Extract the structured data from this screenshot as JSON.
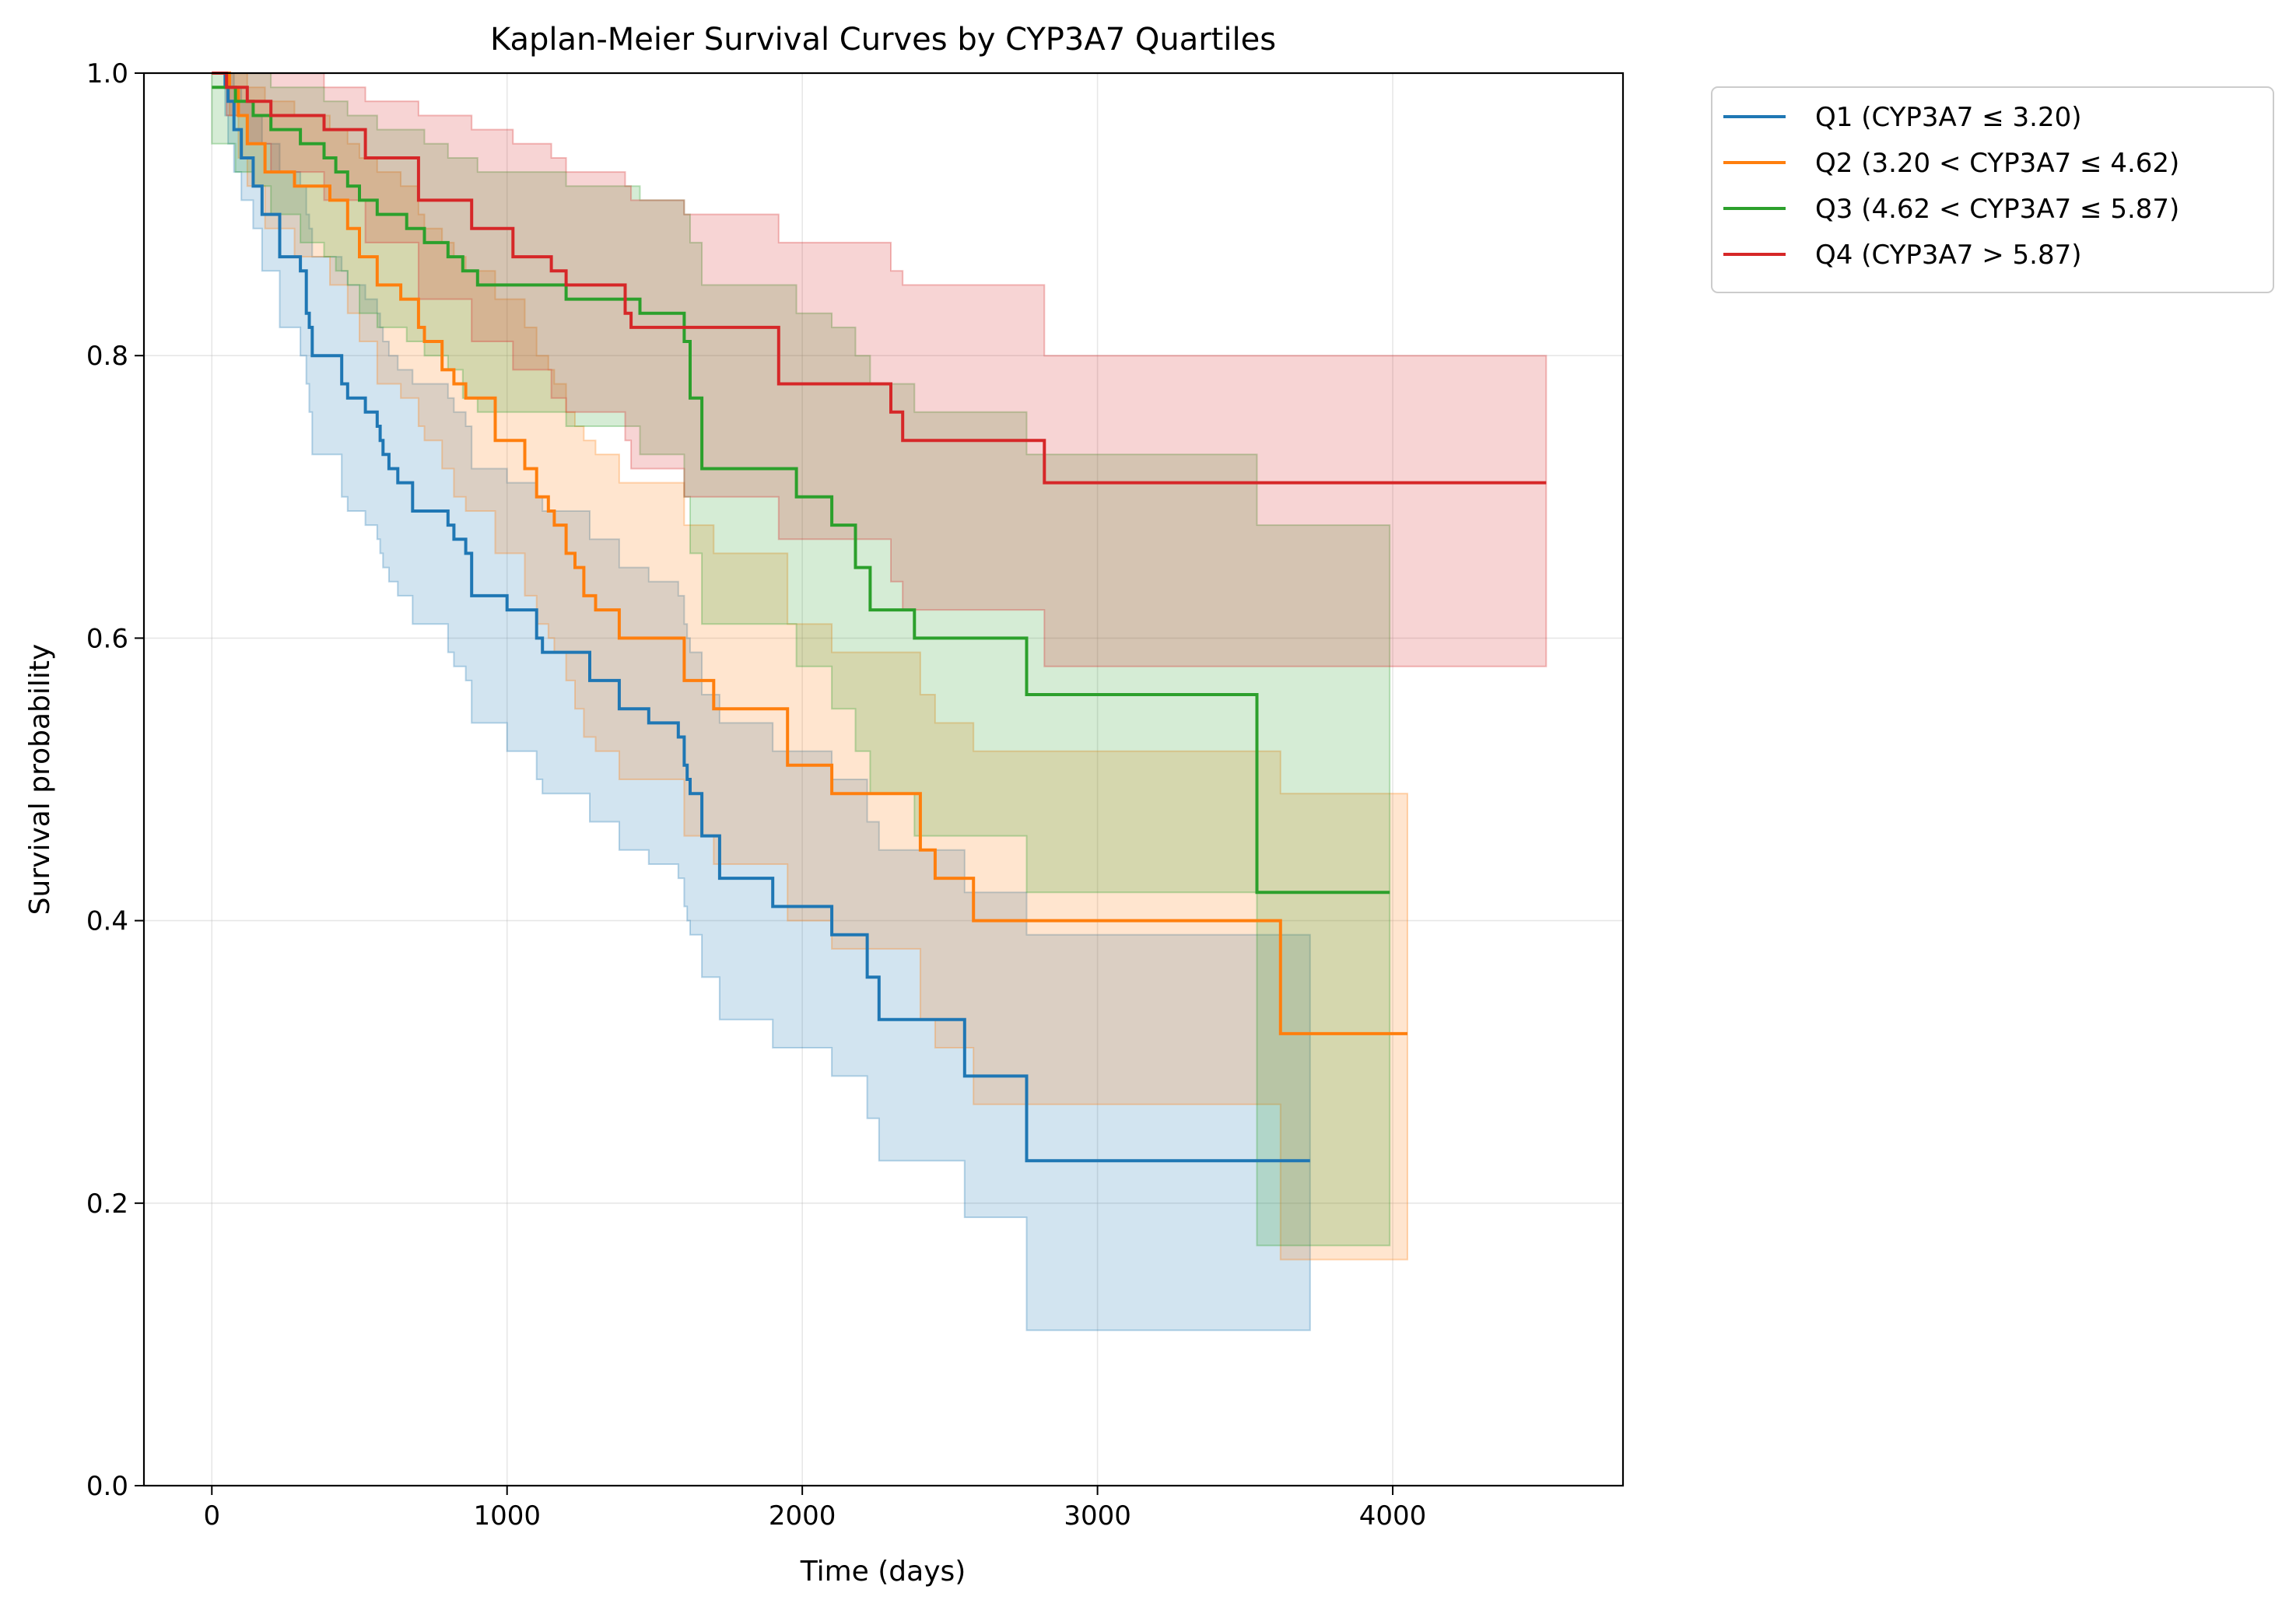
{
  "chart_data": {
    "type": "line",
    "title": "Kaplan-Meier Survival Curves by CYP3A7 Quartiles",
    "xlabel": "Time (days)",
    "ylabel": "Survival probability",
    "xlim": [
      -230,
      4780
    ],
    "ylim": [
      0.0,
      1.0
    ],
    "xticks": [
      0,
      1000,
      2000,
      3000,
      4000
    ],
    "yticks": [
      0.0,
      0.2,
      0.4,
      0.6,
      0.8,
      1.0
    ],
    "xtick_labels": [
      "0",
      "1000",
      "2000",
      "3000",
      "4000"
    ],
    "ytick_labels": [
      "0.0",
      "0.2",
      "0.4",
      "0.6",
      "0.8",
      "1.0"
    ],
    "grid": true,
    "legend_position": "outside-top-right",
    "series": [
      {
        "name": "Q1 (CYP3A7 ≤ 3.20)",
        "color": "#1f77b4",
        "x": [
          0,
          45,
          55,
          75,
          100,
          140,
          170,
          230,
          300,
          320,
          330,
          340,
          440,
          460,
          520,
          560,
          570,
          580,
          600,
          630,
          680,
          800,
          820,
          860,
          880,
          900,
          1000,
          1100,
          1120,
          1180,
          1280,
          1380,
          1480,
          1580,
          1600,
          1610,
          1620,
          1660,
          1720,
          1900,
          2100,
          2220,
          2260,
          2550,
          2760,
          3720
        ],
        "y": [
          1.0,
          0.99,
          0.98,
          0.96,
          0.94,
          0.92,
          0.9,
          0.87,
          0.86,
          0.83,
          0.82,
          0.8,
          0.78,
          0.77,
          0.76,
          0.75,
          0.74,
          0.73,
          0.72,
          0.71,
          0.69,
          0.68,
          0.67,
          0.66,
          0.63,
          0.63,
          0.62,
          0.6,
          0.59,
          0.59,
          0.57,
          0.55,
          0.54,
          0.53,
          0.51,
          0.5,
          0.49,
          0.46,
          0.43,
          0.41,
          0.39,
          0.36,
          0.33,
          0.29,
          0.23,
          0.23
        ],
        "ci_lower": [
          1.0,
          0.97,
          0.95,
          0.93,
          0.91,
          0.89,
          0.86,
          0.82,
          0.8,
          0.78,
          0.76,
          0.73,
          0.7,
          0.69,
          0.68,
          0.67,
          0.66,
          0.65,
          0.64,
          0.63,
          0.61,
          0.59,
          0.58,
          0.57,
          0.54,
          0.54,
          0.52,
          0.5,
          0.49,
          0.49,
          0.47,
          0.45,
          0.44,
          0.43,
          0.41,
          0.4,
          0.39,
          0.36,
          0.33,
          0.31,
          0.29,
          0.26,
          0.23,
          0.19,
          0.11,
          0.11
        ],
        "ci_upper": [
          1.0,
          1.0,
          1.0,
          0.99,
          0.98,
          0.97,
          0.95,
          0.93,
          0.92,
          0.9,
          0.89,
          0.87,
          0.86,
          0.85,
          0.84,
          0.83,
          0.82,
          0.81,
          0.8,
          0.79,
          0.78,
          0.77,
          0.76,
          0.75,
          0.72,
          0.72,
          0.71,
          0.7,
          0.69,
          0.69,
          0.67,
          0.65,
          0.64,
          0.63,
          0.61,
          0.6,
          0.59,
          0.56,
          0.54,
          0.52,
          0.5,
          0.47,
          0.45,
          0.42,
          0.39,
          0.39
        ]
      },
      {
        "name": "Q2 (3.20 < CYP3A7 ≤ 4.62)",
        "color": "#ff7f0e",
        "x": [
          0,
          60,
          90,
          120,
          180,
          280,
          400,
          460,
          500,
          560,
          640,
          700,
          720,
          780,
          820,
          860,
          960,
          1060,
          1100,
          1140,
          1160,
          1200,
          1230,
          1260,
          1300,
          1380,
          1600,
          1700,
          1950,
          2100,
          2400,
          2450,
          2580,
          3620,
          4050
        ],
        "y": [
          1.0,
          0.99,
          0.97,
          0.95,
          0.93,
          0.92,
          0.91,
          0.89,
          0.87,
          0.85,
          0.84,
          0.82,
          0.81,
          0.79,
          0.78,
          0.77,
          0.74,
          0.72,
          0.7,
          0.69,
          0.68,
          0.66,
          0.65,
          0.63,
          0.62,
          0.6,
          0.57,
          0.55,
          0.51,
          0.49,
          0.45,
          0.43,
          0.4,
          0.32,
          0.32
        ],
        "ci_lower": [
          1.0,
          0.97,
          0.94,
          0.92,
          0.89,
          0.87,
          0.85,
          0.83,
          0.81,
          0.78,
          0.77,
          0.75,
          0.74,
          0.72,
          0.7,
          0.69,
          0.66,
          0.63,
          0.61,
          0.6,
          0.59,
          0.57,
          0.55,
          0.53,
          0.52,
          0.5,
          0.46,
          0.44,
          0.4,
          0.38,
          0.33,
          0.31,
          0.27,
          0.16,
          0.16
        ],
        "ci_upper": [
          1.0,
          1.0,
          1.0,
          0.99,
          0.98,
          0.97,
          0.96,
          0.95,
          0.94,
          0.93,
          0.92,
          0.9,
          0.89,
          0.88,
          0.87,
          0.86,
          0.84,
          0.82,
          0.8,
          0.79,
          0.78,
          0.76,
          0.75,
          0.74,
          0.73,
          0.71,
          0.68,
          0.66,
          0.61,
          0.59,
          0.56,
          0.54,
          0.52,
          0.49,
          0.49
        ]
      },
      {
        "name": "Q3 (4.62 < CYP3A7 ≤ 5.87)",
        "color": "#2ca02c",
        "x": [
          0,
          80,
          140,
          200,
          300,
          380,
          420,
          460,
          500,
          560,
          660,
          720,
          800,
          850,
          900,
          1200,
          1450,
          1600,
          1620,
          1660,
          1980,
          2100,
          2180,
          2230,
          2380,
          2760,
          3540,
          3990
        ],
        "y": [
          0.99,
          0.98,
          0.97,
          0.96,
          0.95,
          0.94,
          0.93,
          0.92,
          0.91,
          0.9,
          0.89,
          0.88,
          0.87,
          0.86,
          0.85,
          0.84,
          0.83,
          0.81,
          0.77,
          0.72,
          0.7,
          0.68,
          0.65,
          0.62,
          0.6,
          0.56,
          0.42,
          0.42
        ],
        "ci_lower": [
          0.95,
          0.93,
          0.92,
          0.9,
          0.88,
          0.87,
          0.86,
          0.85,
          0.83,
          0.82,
          0.81,
          0.8,
          0.79,
          0.77,
          0.76,
          0.75,
          0.73,
          0.7,
          0.66,
          0.61,
          0.58,
          0.55,
          0.52,
          0.49,
          0.46,
          0.42,
          0.17,
          0.17
        ],
        "ci_upper": [
          1.0,
          1.0,
          1.0,
          0.99,
          0.99,
          0.98,
          0.98,
          0.97,
          0.97,
          0.96,
          0.96,
          0.95,
          0.94,
          0.94,
          0.93,
          0.92,
          0.91,
          0.9,
          0.88,
          0.85,
          0.83,
          0.82,
          0.8,
          0.78,
          0.76,
          0.73,
          0.68,
          0.65
        ]
      },
      {
        "name": "Q4 (CYP3A7 > 5.87)",
        "color": "#d62728",
        "x": [
          0,
          50,
          120,
          200,
          380,
          520,
          700,
          880,
          1020,
          1150,
          1200,
          1400,
          1420,
          1600,
          1920,
          2300,
          2340,
          2820,
          4520
        ],
        "y": [
          1.0,
          0.99,
          0.98,
          0.97,
          0.96,
          0.94,
          0.91,
          0.89,
          0.87,
          0.86,
          0.85,
          0.83,
          0.82,
          0.82,
          0.78,
          0.76,
          0.74,
          0.71,
          0.71
        ],
        "ci_lower": [
          1.0,
          0.97,
          0.95,
          0.93,
          0.91,
          0.88,
          0.84,
          0.81,
          0.79,
          0.77,
          0.76,
          0.74,
          0.72,
          0.7,
          0.67,
          0.64,
          0.62,
          0.58,
          0.58
        ],
        "ci_upper": [
          1.0,
          1.0,
          1.0,
          1.0,
          0.99,
          0.98,
          0.97,
          0.96,
          0.95,
          0.94,
          0.93,
          0.92,
          0.91,
          0.9,
          0.88,
          0.86,
          0.85,
          0.8,
          0.8
        ]
      }
    ]
  }
}
